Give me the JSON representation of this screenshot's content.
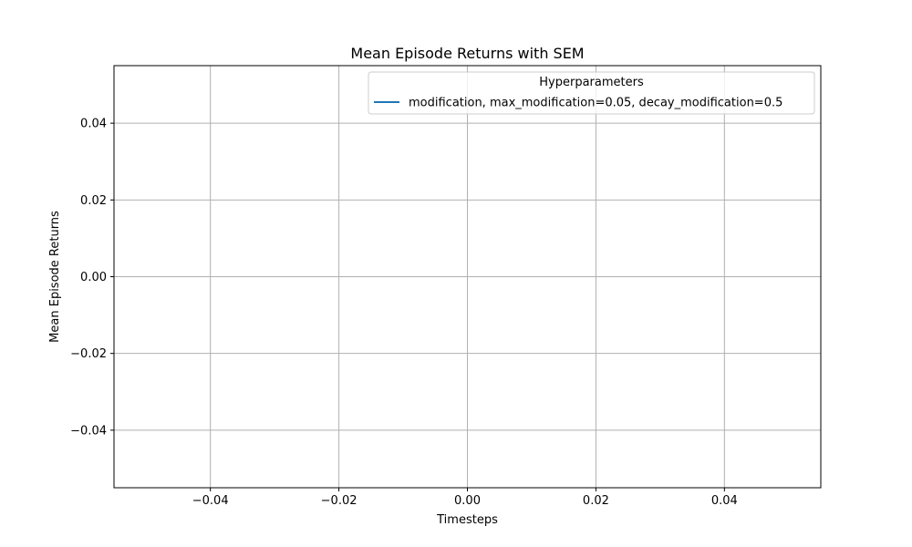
{
  "chart_data": {
    "type": "line",
    "title": "Mean Episode Returns with SEM",
    "xlabel": "Timesteps",
    "ylabel": "Mean Episode Returns",
    "xlim": [
      -0.055,
      0.055
    ],
    "ylim": [
      -0.055,
      0.055
    ],
    "xticks": [
      -0.04,
      -0.02,
      0.0,
      0.02,
      0.04
    ],
    "yticks": [
      -0.04,
      -0.02,
      0.0,
      0.02,
      0.04
    ],
    "xtick_labels": [
      "−0.04",
      "−0.02",
      "0.00",
      "0.02",
      "0.04"
    ],
    "ytick_labels": [
      "−0.04",
      "−0.02",
      "0.00",
      "0.02",
      "0.04"
    ],
    "grid": true,
    "legend": {
      "title": "Hyperparameters",
      "placement": "top-right"
    },
    "series": [
      {
        "name": "modification, max_modification=0.05, decay_modification=0.5",
        "color": "#1f77b4",
        "x": [],
        "y": []
      }
    ]
  }
}
